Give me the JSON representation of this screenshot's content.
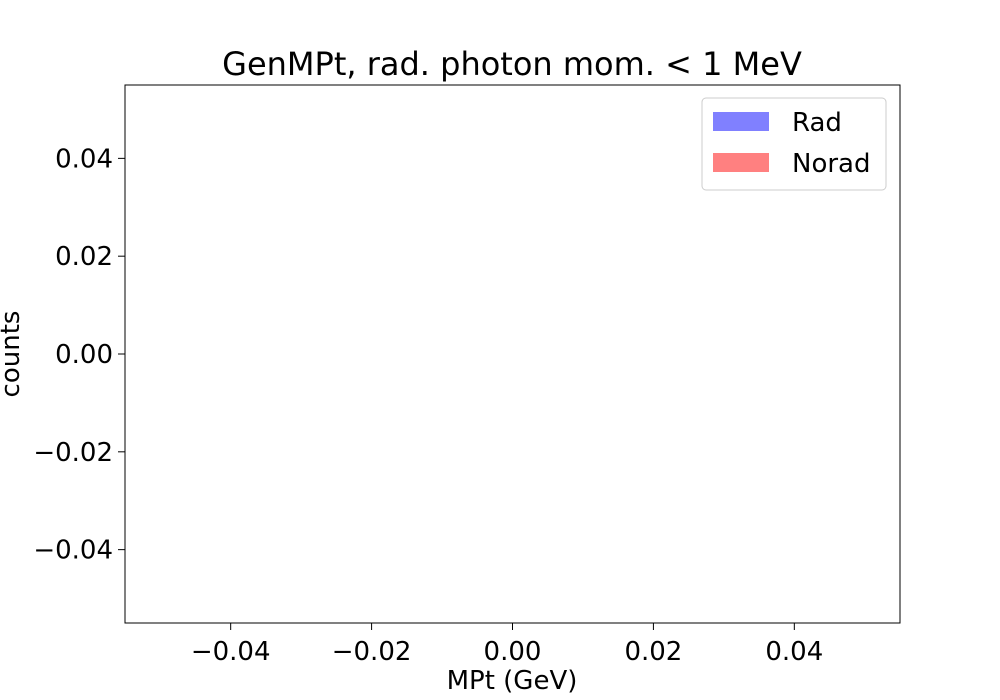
{
  "chart_data": {
    "type": "bar",
    "title": "GenMPt, rad. photon mom. < 1 MeV",
    "xlabel": "MPt (GeV)",
    "ylabel": "counts",
    "xlim": [
      -0.055,
      0.055
    ],
    "ylim": [
      -0.055,
      0.055
    ],
    "x_ticks": [
      -0.04,
      -0.02,
      0.0,
      0.02,
      0.04
    ],
    "x_tick_labels": [
      "−0.04",
      "−0.02",
      "0.00",
      "0.02",
      "0.04"
    ],
    "y_ticks": [
      -0.04,
      -0.02,
      0.0,
      0.02,
      0.04
    ],
    "y_tick_labels": [
      "−0.04",
      "−0.02",
      "0.00",
      "0.02",
      "0.04"
    ],
    "grid": false,
    "legend_position": "top-right",
    "series": [
      {
        "name": "Rad",
        "color": "#8080ff",
        "values": []
      },
      {
        "name": "Norad",
        "color": "#ff8080",
        "values": []
      }
    ]
  }
}
